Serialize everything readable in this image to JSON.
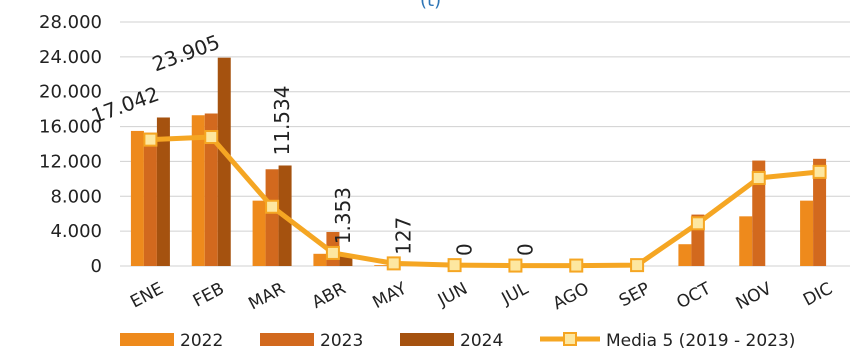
{
  "chart_data": {
    "type": "bar",
    "title_partial": "(t)",
    "categories": [
      "ENE",
      "FEB",
      "MAR",
      "ABR",
      "MAY",
      "JUN",
      "JUL",
      "AGO",
      "SEP",
      "OCT",
      "NOV",
      "DIC"
    ],
    "series": [
      {
        "name": "2022",
        "kind": "bar",
        "color": "#ee8a1c",
        "values": [
          15500,
          17300,
          7500,
          1400,
          100,
          0,
          0,
          0,
          0,
          2500,
          5700,
          7500
        ]
      },
      {
        "name": "2023",
        "kind": "bar",
        "color": "#d2691e",
        "values": [
          15300,
          17500,
          11100,
          3900,
          200,
          0,
          0,
          0,
          0,
          5900,
          12100,
          12300
        ]
      },
      {
        "name": "2024",
        "kind": "bar",
        "color": "#a5520f",
        "values": [
          17042,
          23905,
          11534,
          1353,
          127,
          0,
          0,
          null,
          null,
          null,
          null,
          null
        ]
      },
      {
        "name": "Media 5 (2019 - 2023)",
        "kind": "line",
        "color": "#f5a623",
        "marker_fill": "#fde7a0",
        "values": [
          14500,
          14800,
          6800,
          1500,
          300,
          100,
          50,
          50,
          100,
          4900,
          10100,
          10800
        ]
      }
    ],
    "data_labels_2024": [
      "17.042",
      "23.905",
      "11.534",
      "1.353",
      "127",
      "0",
      "0"
    ],
    "y_ticks": [
      "0",
      "4.000",
      "8.000",
      "12.000",
      "16.000",
      "20.000",
      "24.000",
      "28.000"
    ],
    "ylim": [
      0,
      28000
    ],
    "grid": true,
    "legend_position": "bottom"
  }
}
